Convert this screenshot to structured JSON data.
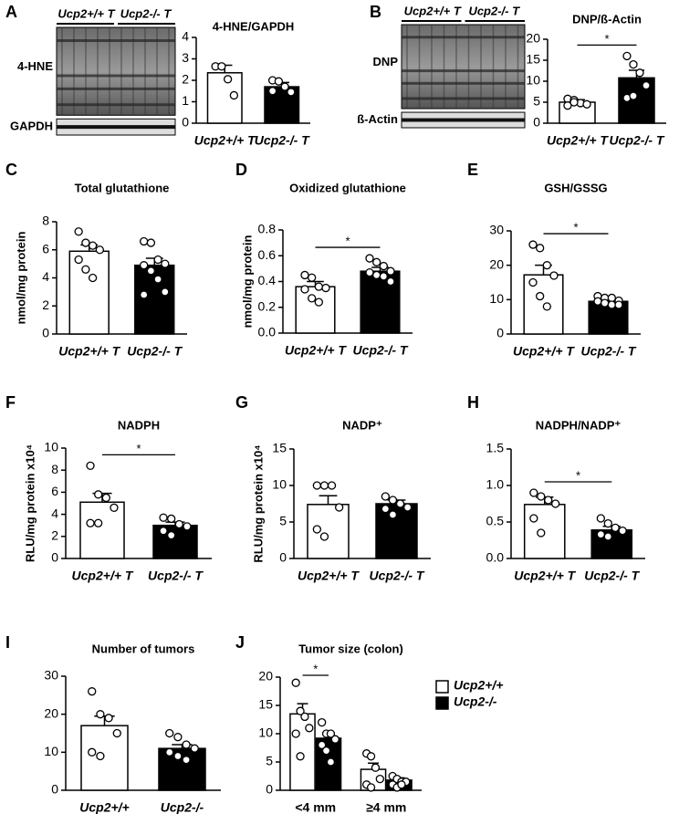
{
  "chart_data": [
    {
      "type": "blot",
      "panel": "A",
      "header": [
        "Ucp2+/+ T",
        "Ucp2-/- T"
      ],
      "bands": [
        "4-HNE",
        "GAPDH"
      ]
    },
    {
      "type": "bar",
      "title": "4-HNE/GAPDH",
      "categories": [
        "Ucp2+/+ T",
        "Ucp2-/- T"
      ],
      "colors": [
        "#ffffff",
        "#000000"
      ],
      "values": [
        2.35,
        1.7
      ],
      "errors": [
        0.35,
        0.2
      ],
      "points": [
        [
          2.65,
          2.65,
          2.05,
          1.3
        ],
        [
          2.0,
          1.95,
          1.7,
          1.45,
          1.5
        ]
      ],
      "ylim": [
        0,
        4
      ],
      "yticks": [
        0,
        1,
        2,
        3,
        4
      ]
    },
    {
      "type": "blot",
      "panel": "B",
      "header": [
        "Ucp2+/+ T",
        "Ucp2-/- T"
      ],
      "bands": [
        "DNP",
        "ß-Actin"
      ]
    },
    {
      "type": "bar",
      "title": "DNP/ß-Actin",
      "categories": [
        "Ucp2+/+ T",
        "Ucp2-/- T"
      ],
      "colors": [
        "#ffffff",
        "#000000"
      ],
      "values": [
        5.0,
        10.8
      ],
      "errors": [
        0.6,
        1.8
      ],
      "points": [
        [
          5.8,
          5.5,
          4.8,
          4.5,
          4.2,
          5.0
        ],
        [
          16,
          14,
          12,
          9,
          6,
          6.5
        ]
      ],
      "ylim": [
        0,
        20
      ],
      "yticks": [
        0,
        5,
        10,
        15,
        20
      ],
      "significance": "*"
    },
    {
      "type": "bar",
      "panel": "C",
      "title": "Total glutathione",
      "ylabel": "nmol/mg protein",
      "categories": [
        "Ucp2+/+ T",
        "Ucp2-/- T"
      ],
      "colors": [
        "#ffffff",
        "#000000"
      ],
      "values": [
        5.9,
        4.9
      ],
      "errors": [
        0.45,
        0.5
      ],
      "points": [
        [
          7.3,
          6.5,
          6.3,
          6.0,
          5.3,
          4.6,
          4.0
        ],
        [
          6.6,
          6.5,
          5.3,
          5.0,
          4.9,
          4.5,
          3.9,
          3.0,
          2.8
        ]
      ],
      "ylim": [
        0,
        8
      ],
      "yticks": [
        0,
        2,
        4,
        6,
        8
      ]
    },
    {
      "type": "bar",
      "panel": "D",
      "title": "Oxidized glutathione",
      "ylabel": "nmol/mg protein",
      "categories": [
        "Ucp2+/+ T",
        "Ucp2-/- T"
      ],
      "colors": [
        "#ffffff",
        "#000000"
      ],
      "values": [
        0.36,
        0.48
      ],
      "errors": [
        0.04,
        0.03
      ],
      "points": [
        [
          0.45,
          0.43,
          0.36,
          0.35,
          0.34,
          0.27,
          0.24
        ],
        [
          0.58,
          0.55,
          0.52,
          0.48,
          0.47,
          0.45,
          0.44,
          0.4
        ]
      ],
      "ylim": [
        0,
        0.8
      ],
      "yticks": [
        {
          "value": 0,
          "label": "0.0"
        },
        0.2,
        0.4,
        0.6,
        0.8
      ],
      "significance": "*"
    },
    {
      "type": "bar",
      "panel": "E",
      "title": "GSH/GSSG",
      "categories": [
        "Ucp2+/+ T",
        "Ucp2-/- T"
      ],
      "colors": [
        "#ffffff",
        "#000000"
      ],
      "values": [
        17.2,
        9.5
      ],
      "errors": [
        2.8,
        0.7
      ],
      "points": [
        [
          26,
          25,
          20,
          17,
          15,
          11,
          8
        ],
        [
          11,
          10.5,
          10.5,
          9.7,
          9.5,
          9,
          8.5,
          8.5
        ]
      ],
      "ylim": [
        0,
        30
      ],
      "yticks": [
        0,
        10,
        20,
        30
      ],
      "significance": "*"
    },
    {
      "type": "bar",
      "panel": "F",
      "title": "NADPH",
      "ylabel": "RLU/mg protein x10⁴",
      "categories": [
        "Ucp2+/+ T",
        "Ucp2-/- T"
      ],
      "colors": [
        "#ffffff",
        "#000000"
      ],
      "values": [
        5.1,
        3.0
      ],
      "errors": [
        0.8,
        0.3
      ],
      "points": [
        [
          8.4,
          5.8,
          5.5,
          4.6,
          3.2,
          3.2
        ],
        [
          3.7,
          3.6,
          3.1,
          2.9,
          2.5,
          2.1
        ]
      ],
      "ylim": [
        0,
        10
      ],
      "yticks": [
        0,
        2,
        4,
        6,
        8,
        10
      ],
      "significance": "*"
    },
    {
      "type": "bar",
      "panel": "G",
      "title": "NADP⁺",
      "ylabel": "RLU/mg protein x10⁴",
      "categories": [
        "Ucp2+/+ T",
        "Ucp2-/- T"
      ],
      "colors": [
        "#ffffff",
        "#000000"
      ],
      "values": [
        7.4,
        7.5
      ],
      "errors": [
        1.2,
        0.5
      ],
      "points": [
        [
          10,
          10,
          10,
          7,
          4,
          3
        ],
        [
          8.5,
          8,
          7.5,
          7,
          6.8,
          6
        ]
      ],
      "ylim": [
        0,
        15
      ],
      "yticks": [
        0,
        5,
        10,
        15
      ]
    },
    {
      "type": "bar",
      "panel": "H",
      "title": "NADPH/NADP⁺",
      "categories": [
        "Ucp2+/+ T",
        "Ucp2-/- T"
      ],
      "colors": [
        "#ffffff",
        "#000000"
      ],
      "values": [
        0.74,
        0.39
      ],
      "errors": [
        0.1,
        0.05
      ],
      "points": [
        [
          0.9,
          0.85,
          0.8,
          0.75,
          0.55,
          0.35
        ],
        [
          0.55,
          0.48,
          0.42,
          0.38,
          0.33,
          0.3
        ]
      ],
      "ylim": [
        0,
        1.5
      ],
      "yticks": [
        {
          "value": 0,
          "label": "0.0"
        },
        0.5,
        {
          "value": 1,
          "label": "1.0"
        },
        1.5
      ],
      "significance": "*"
    },
    {
      "type": "bar",
      "panel": "I",
      "title": "Number of tumors",
      "categories": [
        "Ucp2+/+",
        "Ucp2-/-"
      ],
      "colors": [
        "#ffffff",
        "#000000"
      ],
      "values": [
        17,
        11
      ],
      "errors": [
        2.5,
        1
      ],
      "points": [
        [
          26,
          20,
          19,
          15,
          10,
          9
        ],
        [
          15,
          14,
          12,
          11,
          10,
          9,
          8
        ]
      ],
      "ylim": [
        0,
        30
      ],
      "yticks": [
        0,
        10,
        20,
        30
      ]
    },
    {
      "type": "grouped-bar",
      "panel": "J",
      "title": "Tumor size (colon)",
      "categories": [
        "<4 mm",
        "≥4 mm"
      ],
      "series": [
        {
          "name": "Ucp2+/+",
          "color": "#ffffff",
          "values": [
            13.5,
            3.7
          ],
          "errors": [
            1.8,
            1.1
          ],
          "points": [
            [
              19,
              14,
              13,
              11,
              10,
              6
            ],
            [
              6.5,
              6,
              4,
              2,
              1,
              0.5
            ]
          ]
        },
        {
          "name": "Ucp2-/-",
          "color": "#000000",
          "values": [
            9.2,
            1.8
          ],
          "errors": [
            0.8,
            0.4
          ],
          "points": [
            [
              12,
              10,
              10,
              9,
              8,
              7,
              5
            ],
            [
              2.5,
              2,
              1.5,
              1.5,
              1,
              0.5,
              1
            ]
          ]
        }
      ],
      "ylim": [
        0,
        20
      ],
      "yticks": [
        0,
        5,
        10,
        15,
        20
      ],
      "significance": "*"
    }
  ]
}
